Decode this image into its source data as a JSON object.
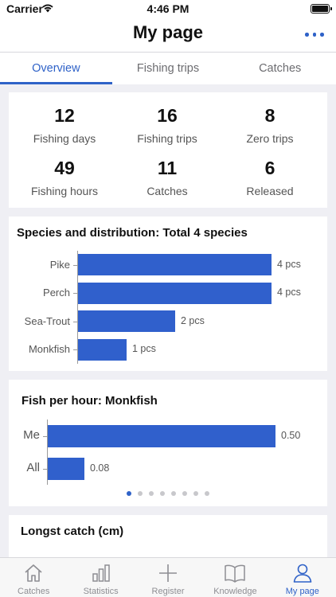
{
  "status_bar": {
    "carrier": "Carrier",
    "time": "4:46 PM"
  },
  "nav": {
    "title": "My page"
  },
  "tabs": [
    {
      "label": "Overview",
      "active": true
    },
    {
      "label": "Fishing trips",
      "active": false
    },
    {
      "label": "Catches",
      "active": false
    }
  ],
  "stats": [
    {
      "value": "12",
      "label": "Fishing days"
    },
    {
      "value": "16",
      "label": "Fishing trips"
    },
    {
      "value": "8",
      "label": "Zero trips"
    },
    {
      "value": "49",
      "label": "Fishing hours"
    },
    {
      "value": "11",
      "label": "Catches"
    },
    {
      "value": "6",
      "label": "Released"
    }
  ],
  "species_chart": {
    "title": "Species and distribution: Total 4 species",
    "bars": [
      {
        "label": "Pike",
        "value": 4,
        "value_label": "4 pcs"
      },
      {
        "label": "Perch",
        "value": 4,
        "value_label": "4 pcs"
      },
      {
        "label": "Sea-Trout",
        "value": 2,
        "value_label": "2 pcs"
      },
      {
        "label": "Monkfish",
        "value": 1,
        "value_label": "1 pcs"
      }
    ]
  },
  "fish_per_hour": {
    "title": "Fish per hour: Monkfish",
    "bars": [
      {
        "label": "Me",
        "value": 0.5,
        "value_label": "0.50"
      },
      {
        "label": "All",
        "value": 0.08,
        "value_label": "0.08"
      }
    ],
    "page_count": 8,
    "active_page": 0
  },
  "longest_catch": {
    "title": "Longst catch (cm)"
  },
  "tabbar": [
    {
      "label": "Catches",
      "icon": "home-icon",
      "active": false
    },
    {
      "label": "Statistics",
      "icon": "bar-chart-icon",
      "active": false
    },
    {
      "label": "Register",
      "icon": "plus-icon",
      "active": false
    },
    {
      "label": "Knowledge",
      "icon": "book-icon",
      "active": false
    },
    {
      "label": "My page",
      "icon": "person-icon",
      "active": true
    }
  ],
  "colors": {
    "accent": "#2f62c8",
    "bar": "#3060cc",
    "background": "#efeff4"
  }
}
